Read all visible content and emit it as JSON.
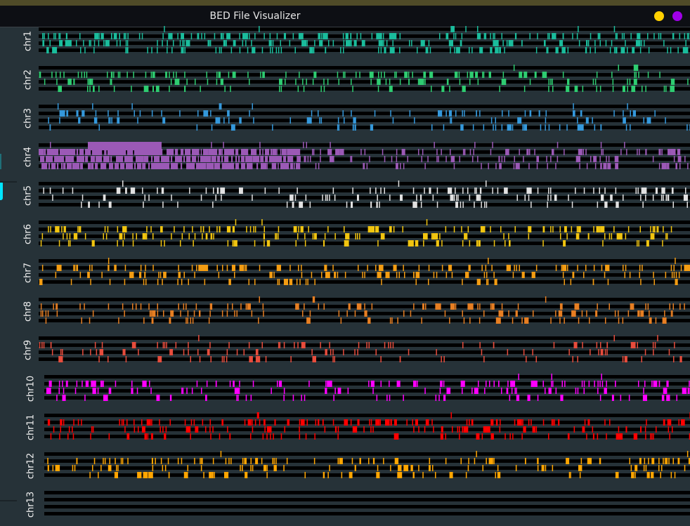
{
  "window": {
    "title": "BED File Visualizer",
    "controls": [
      {
        "name": "minimize",
        "color": "#ffd000"
      },
      {
        "name": "close",
        "color": "#a000e8"
      }
    ]
  },
  "chromosomes": [
    {
      "name": "chr1",
      "color": "#1abc9c",
      "density": [
        0.05,
        0.9,
        0.7,
        0.6
      ]
    },
    {
      "name": "chr2",
      "color": "#2ecc71",
      "density": [
        0.02,
        0.6,
        0.45,
        0.35
      ]
    },
    {
      "name": "chr3",
      "color": "#3498db",
      "density": [
        0.05,
        0.4,
        0.3,
        0.3
      ]
    },
    {
      "name": "chr4",
      "color": "#9b59b6",
      "density": [
        0.1,
        0.7,
        0.6,
        0.5
      ],
      "dense_region": [
        0,
        0.4
      ]
    },
    {
      "name": "chr5",
      "color": "#e0e0e0",
      "density": [
        0.02,
        0.45,
        0.4,
        0.3
      ]
    },
    {
      "name": "chr6",
      "color": "#f1c40f",
      "density": [
        0.02,
        0.6,
        0.5,
        0.35
      ]
    },
    {
      "name": "chr7",
      "color": "#f39c12",
      "density": [
        0.02,
        0.6,
        0.45,
        0.3
      ]
    },
    {
      "name": "chr8",
      "color": "#e67e22",
      "density": [
        0.02,
        0.5,
        0.4,
        0.3
      ]
    },
    {
      "name": "chr9",
      "color": "#e74c3c",
      "density": [
        0.02,
        0.35,
        0.3,
        0.25
      ]
    },
    {
      "name": "chr10",
      "color": "#ff00ff",
      "density": [
        0.02,
        0.6,
        0.4,
        0.3
      ]
    },
    {
      "name": "chr11",
      "color": "#ff0000",
      "density": [
        0.02,
        0.7,
        0.45,
        0.4
      ]
    },
    {
      "name": "chr12",
      "color": "#ffa500",
      "density": [
        0.02,
        0.6,
        0.4,
        0.35
      ]
    },
    {
      "name": "chr13",
      "color": "#cccccc",
      "density": [
        0,
        0,
        0,
        0
      ]
    }
  ]
}
